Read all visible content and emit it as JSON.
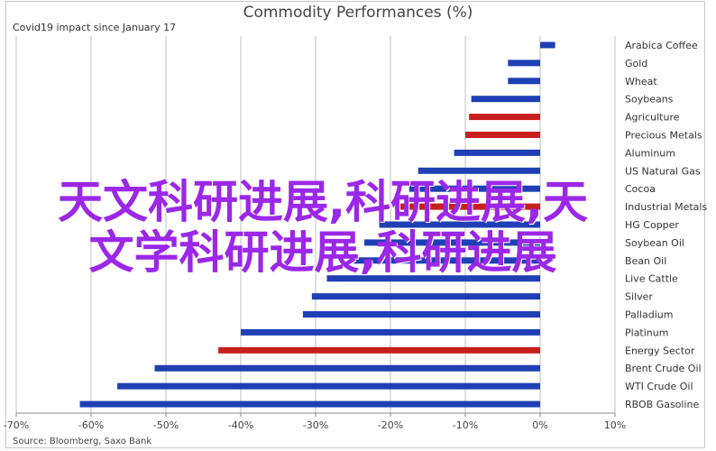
{
  "chart_data": {
    "type": "bar",
    "orientation": "horizontal",
    "title": "Commodity Performances (%)",
    "subtitle": "Covid19 impact since January 17",
    "source": "Source: Bloomberg, Saxo Bank",
    "xlim": [
      -70,
      10
    ],
    "xticks": [
      "-70%",
      "-60%",
      "-50%",
      "-40%",
      "-30%",
      "-20%",
      "-10%",
      "0%",
      "10%"
    ],
    "grid": true,
    "colors": {
      "default": "#1f3fb4",
      "highlight": "#c81e1e",
      "grid": "#bfbfbf",
      "axis": "#888888"
    },
    "categories": [
      "Arabica Coffee",
      "Gold",
      "Wheat",
      "Soybeans",
      "Agriculture",
      "Precious Metals",
      "Aluminum",
      "US Natural Gas",
      "Cocoa",
      "Industrial Metals",
      "HG Copper",
      "Soybean Oil",
      "Bean Oil",
      "Live Cattle",
      "Silver",
      "Palladium",
      "Platinum",
      "Energy Sector",
      "Brent Crude Oil",
      "WTI Crude Oil",
      "RBOB Gasoline"
    ],
    "values": [
      2,
      -4.3,
      -4.3,
      -9.2,
      -9.5,
      -10,
      -11.5,
      -16.3,
      -17.5,
      -19,
      -21.5,
      -23.5,
      -25,
      -28.5,
      -30.5,
      -31.7,
      -40,
      -43,
      -51.5,
      -56.5,
      -61.5
    ],
    "highlight": [
      false,
      false,
      false,
      false,
      true,
      true,
      false,
      false,
      false,
      true,
      false,
      false,
      false,
      false,
      false,
      false,
      false,
      true,
      false,
      false,
      false
    ]
  },
  "overlay": {
    "line1": "天文科研进展,科研进展,天",
    "line2": "文学科研进展,科研进展"
  }
}
